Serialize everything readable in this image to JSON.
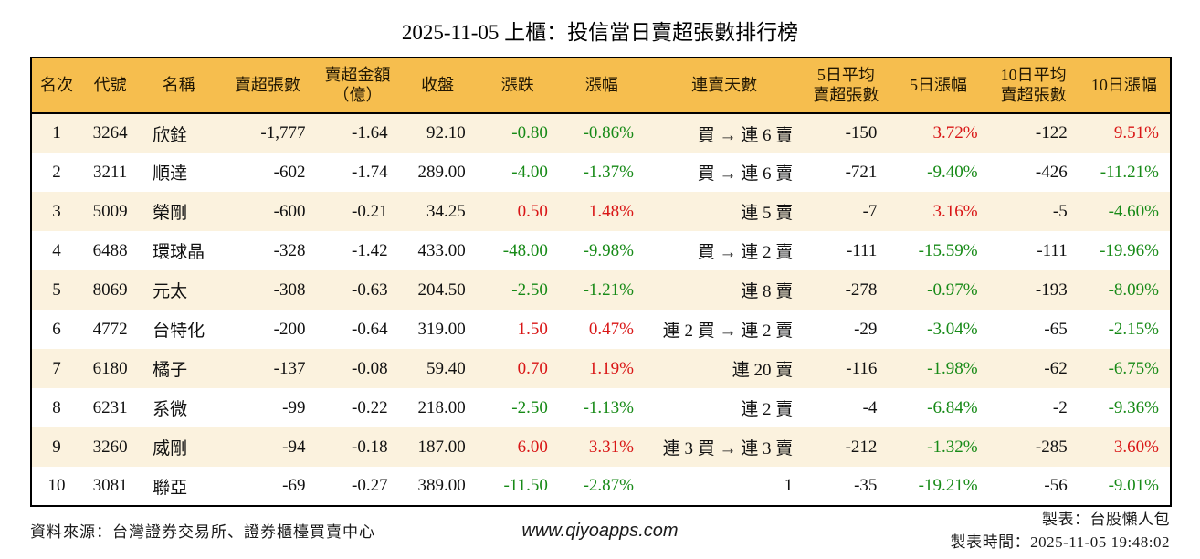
{
  "title": "2025-11-05 上櫃：投信當日賣超張數排行榜",
  "chart_data": {
    "type": "table",
    "title": "2025-11-05 上櫃：投信當日賣超張數排行榜",
    "columns": [
      {
        "key": "rank",
        "label": "名次",
        "align": "center"
      },
      {
        "key": "code",
        "label": "代號",
        "align": "center"
      },
      {
        "key": "name",
        "label": "名稱",
        "align": "left"
      },
      {
        "key": "net_sell",
        "label": "賣超張數",
        "align": "right"
      },
      {
        "key": "amount",
        "label": "賣超金額\n（億）",
        "align": "right"
      },
      {
        "key": "close",
        "label": "收盤",
        "align": "right"
      },
      {
        "key": "change",
        "label": "漲跌",
        "align": "right"
      },
      {
        "key": "change_pct",
        "label": "漲幅",
        "align": "right"
      },
      {
        "key": "streak",
        "label": "連賣天數",
        "align": "right"
      },
      {
        "key": "avg5",
        "label": "5日平均\n賣超張數",
        "align": "right"
      },
      {
        "key": "pct5",
        "label": "5日漲幅",
        "align": "right"
      },
      {
        "key": "avg10",
        "label": "10日平均\n賣超張數",
        "align": "right"
      },
      {
        "key": "pct10",
        "label": "10日漲幅",
        "align": "right"
      }
    ],
    "rows": [
      {
        "rank": "1",
        "code": "3264",
        "name": "欣銓",
        "net_sell": "-1,777",
        "amount": "-1.64",
        "close": "92.10",
        "change": "-0.80",
        "change_pct": "-0.86%",
        "streak": "買 → 連 6 賣",
        "avg5": "-150",
        "pct5": "3.72%",
        "avg10": "-122",
        "pct10": "9.51%",
        "colors": {
          "change": "green",
          "change_pct": "green",
          "pct5": "red",
          "pct10": "red"
        }
      },
      {
        "rank": "2",
        "code": "3211",
        "name": "順達",
        "net_sell": "-602",
        "amount": "-1.74",
        "close": "289.00",
        "change": "-4.00",
        "change_pct": "-1.37%",
        "streak": "買 → 連 6 賣",
        "avg5": "-721",
        "pct5": "-9.40%",
        "avg10": "-426",
        "pct10": "-11.21%",
        "colors": {
          "change": "green",
          "change_pct": "green",
          "pct5": "green",
          "pct10": "green"
        }
      },
      {
        "rank": "3",
        "code": "5009",
        "name": "榮剛",
        "net_sell": "-600",
        "amount": "-0.21",
        "close": "34.25",
        "change": "0.50",
        "change_pct": "1.48%",
        "streak": "連 5 賣",
        "avg5": "-7",
        "pct5": "3.16%",
        "avg10": "-5",
        "pct10": "-4.60%",
        "colors": {
          "change": "red",
          "change_pct": "red",
          "pct5": "red",
          "pct10": "green"
        }
      },
      {
        "rank": "4",
        "code": "6488",
        "name": "環球晶",
        "net_sell": "-328",
        "amount": "-1.42",
        "close": "433.00",
        "change": "-48.00",
        "change_pct": "-9.98%",
        "streak": "買 → 連 2 賣",
        "avg5": "-111",
        "pct5": "-15.59%",
        "avg10": "-111",
        "pct10": "-19.96%",
        "colors": {
          "change": "green",
          "change_pct": "green",
          "pct5": "green",
          "pct10": "green"
        }
      },
      {
        "rank": "5",
        "code": "8069",
        "name": "元太",
        "net_sell": "-308",
        "amount": "-0.63",
        "close": "204.50",
        "change": "-2.50",
        "change_pct": "-1.21%",
        "streak": "連 8 賣",
        "avg5": "-278",
        "pct5": "-0.97%",
        "avg10": "-193",
        "pct10": "-8.09%",
        "colors": {
          "change": "green",
          "change_pct": "green",
          "pct5": "green",
          "pct10": "green"
        }
      },
      {
        "rank": "6",
        "code": "4772",
        "name": "台特化",
        "net_sell": "-200",
        "amount": "-0.64",
        "close": "319.00",
        "change": "1.50",
        "change_pct": "0.47%",
        "streak": "連 2 買 → 連 2 賣",
        "avg5": "-29",
        "pct5": "-3.04%",
        "avg10": "-65",
        "pct10": "-2.15%",
        "colors": {
          "change": "red",
          "change_pct": "red",
          "pct5": "green",
          "pct10": "green"
        }
      },
      {
        "rank": "7",
        "code": "6180",
        "name": "橘子",
        "net_sell": "-137",
        "amount": "-0.08",
        "close": "59.40",
        "change": "0.70",
        "change_pct": "1.19%",
        "streak": "連 20 賣",
        "avg5": "-116",
        "pct5": "-1.98%",
        "avg10": "-62",
        "pct10": "-6.75%",
        "colors": {
          "change": "red",
          "change_pct": "red",
          "pct5": "green",
          "pct10": "green"
        }
      },
      {
        "rank": "8",
        "code": "6231",
        "name": "系微",
        "net_sell": "-99",
        "amount": "-0.22",
        "close": "218.00",
        "change": "-2.50",
        "change_pct": "-1.13%",
        "streak": "連 2 賣",
        "avg5": "-4",
        "pct5": "-6.84%",
        "avg10": "-2",
        "pct10": "-9.36%",
        "colors": {
          "change": "green",
          "change_pct": "green",
          "pct5": "green",
          "pct10": "green"
        }
      },
      {
        "rank": "9",
        "code": "3260",
        "name": "威剛",
        "net_sell": "-94",
        "amount": "-0.18",
        "close": "187.00",
        "change": "6.00",
        "change_pct": "3.31%",
        "streak": "連 3 買 → 連 3 賣",
        "avg5": "-212",
        "pct5": "-1.32%",
        "avg10": "-285",
        "pct10": "3.60%",
        "colors": {
          "change": "red",
          "change_pct": "red",
          "pct5": "green",
          "pct10": "red"
        }
      },
      {
        "rank": "10",
        "code": "3081",
        "name": "聯亞",
        "net_sell": "-69",
        "amount": "-0.27",
        "close": "389.00",
        "change": "-11.50",
        "change_pct": "-2.87%",
        "streak": "1",
        "avg5": "-35",
        "pct5": "-19.21%",
        "avg10": "-56",
        "pct10": "-9.01%",
        "colors": {
          "change": "green",
          "change_pct": "green",
          "pct5": "green",
          "pct10": "green"
        }
      }
    ],
    "layout": {
      "zebra_striping": true,
      "header_two_line_columns": [
        "amount",
        "avg5",
        "avg10"
      ]
    }
  },
  "footer": {
    "source": "資料來源：台灣證券交易所、證券櫃檯買賣中心",
    "website": "www.qiyoapps.com",
    "maker": "製表：台股懶人包",
    "generated_at": "製表時間：2025-11-05 19:48:02"
  },
  "colors": {
    "red": "#d91616",
    "green": "#178a17",
    "header_bg": "#f6be4e",
    "row_alt_bg": "#fbf2de",
    "border": "#000000",
    "text": "#111111"
  }
}
